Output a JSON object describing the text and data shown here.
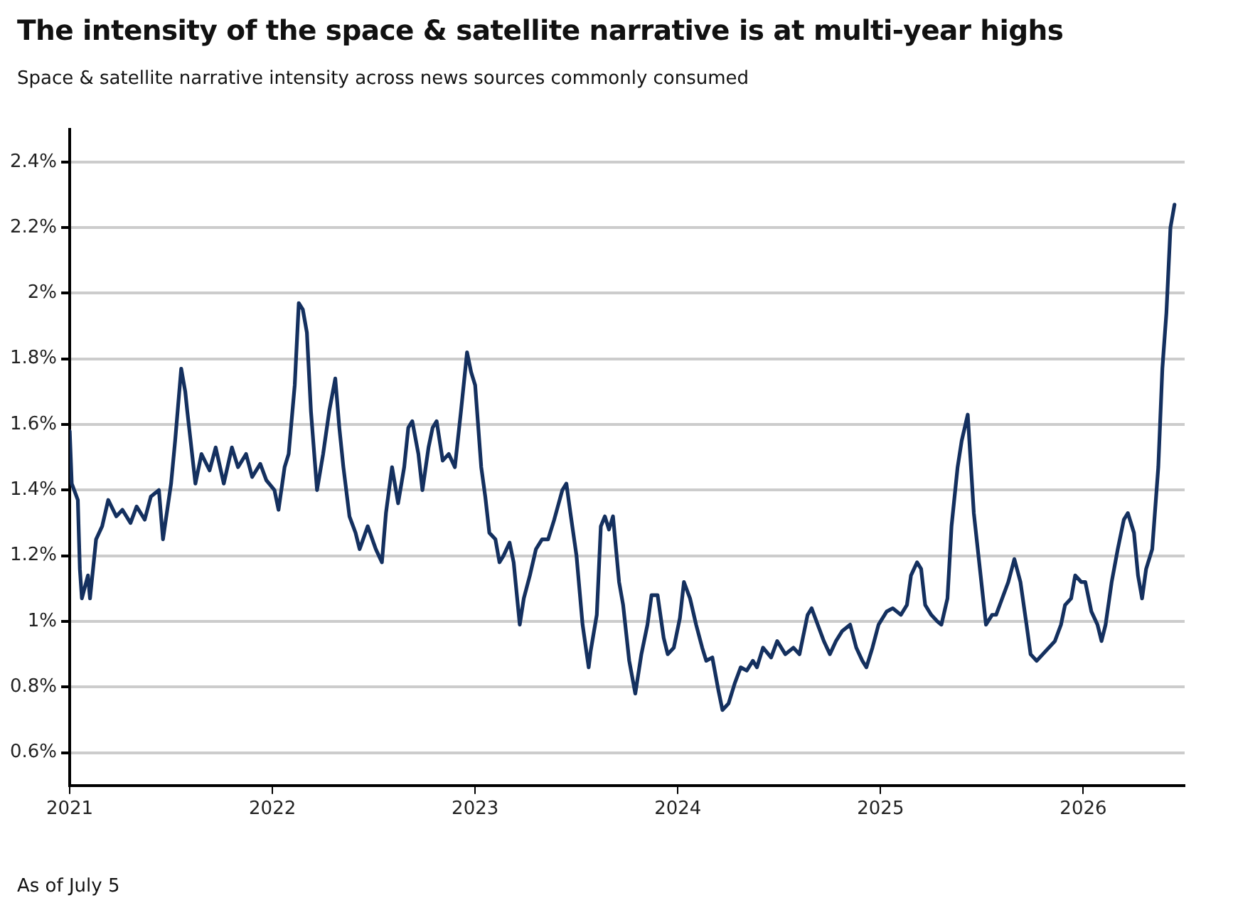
{
  "chart_data": {
    "type": "line",
    "title": "The intensity of the space & satellite narrative is at multi-year highs",
    "subtitle": "Space & satellite narrative intensity across news sources commonly consumed",
    "annotations": [
      "As of July 5"
    ],
    "xlim": [
      2021,
      2026.5
    ],
    "xticks": [
      2021,
      2022,
      2023,
      2024,
      2025,
      2026
    ],
    "ylim": [
      0.5,
      2.5
    ],
    "yticks": [
      {
        "value": 0.6,
        "label": "0.6%"
      },
      {
        "value": 0.8,
        "label": "0.8%"
      },
      {
        "value": 1,
        "label": "1%"
      },
      {
        "value": 1.2,
        "label": "1.2%"
      },
      {
        "value": 1.4,
        "label": "1.4%"
      },
      {
        "value": 1.6,
        "label": "1.6%"
      },
      {
        "value": 1.8,
        "label": "1.8%"
      },
      {
        "value": 2,
        "label": "2%"
      },
      {
        "value": 2.2,
        "label": "2.2%"
      },
      {
        "value": 2.4,
        "label": "2.4%"
      }
    ],
    "grid": "y",
    "marker": "none",
    "line_style": "solid",
    "series": [
      {
        "color": "#14305f",
        "x": [
          2021.0,
          2021.01,
          2021.04,
          2021.05,
          2021.06,
          2021.09,
          2021.1,
          2021.13,
          2021.16,
          2021.19,
          2021.23,
          2021.26,
          2021.3,
          2021.33,
          2021.37,
          2021.4,
          2021.44,
          2021.46,
          2021.5,
          2021.52,
          2021.55,
          2021.57,
          2021.58,
          2021.62,
          2021.65,
          2021.69,
          2021.72,
          2021.76,
          2021.8,
          2021.83,
          2021.87,
          2021.9,
          2021.94,
          2021.97,
          2022.01,
          2022.03,
          2022.06,
          2022.08,
          2022.11,
          2022.13,
          2022.15,
          2022.17,
          2022.19,
          2022.22,
          2022.25,
          2022.28,
          2022.31,
          2022.33,
          2022.35,
          2022.38,
          2022.41,
          2022.43,
          2022.47,
          2022.51,
          2022.54,
          2022.56,
          2022.59,
          2022.62,
          2022.65,
          2022.67,
          2022.69,
          2022.72,
          2022.74,
          2022.77,
          2022.79,
          2022.81,
          2022.84,
          2022.87,
          2022.9,
          2022.93,
          2022.96,
          2022.98,
          2023.0,
          2023.03,
          2023.05,
          2023.07,
          2023.1,
          2023.12,
          2023.14,
          2023.17,
          2023.19,
          2023.22,
          2023.24,
          2023.27,
          2023.3,
          2023.33,
          2023.36,
          2023.39,
          2023.43,
          2023.45,
          2023.47,
          2023.5,
          2023.53,
          2023.56,
          2023.57,
          2023.6,
          2023.62,
          2023.64,
          2023.66,
          2023.68,
          2023.71,
          2023.73,
          2023.76,
          2023.79,
          2023.82,
          2023.85,
          2023.87,
          2023.9,
          2023.93,
          2023.95,
          2023.98,
          2024.01,
          2024.03,
          2024.06,
          2024.09,
          2024.12,
          2024.14,
          2024.17,
          2024.2,
          2024.22,
          2024.25,
          2024.28,
          2024.31,
          2024.34,
          2024.37,
          2024.39,
          2024.42,
          2024.46,
          2024.49,
          2024.53,
          2024.57,
          2024.6,
          2024.64,
          2024.66,
          2024.69,
          2024.72,
          2024.75,
          2024.78,
          2024.81,
          2024.85,
          2024.88,
          2024.91,
          2024.93,
          2024.96,
          2024.99,
          2025.03,
          2025.06,
          2025.1,
          2025.13,
          2025.15,
          2025.18,
          2025.2,
          2025.22,
          2025.25,
          2025.28,
          2025.3,
          2025.33,
          2025.35,
          2025.38,
          2025.4,
          2025.43,
          2025.46,
          2025.49,
          2025.52,
          2025.55,
          2025.57,
          2025.6,
          2025.63,
          2025.66,
          2025.69,
          2025.72,
          2025.74,
          2025.77,
          2025.8,
          2025.83,
          2025.86,
          2025.89,
          2025.91,
          2025.94,
          2025.96,
          2025.99,
          2026.01,
          2026.04,
          2026.07,
          2026.09,
          2026.11,
          2026.14,
          2026.17,
          2026.2,
          2026.22,
          2026.25,
          2026.27,
          2026.29,
          2026.31,
          2026.34,
          2026.37,
          2026.39,
          2026.41,
          2026.43,
          2026.45
        ],
        "values": [
          1.58,
          1.42,
          1.37,
          1.16,
          1.07,
          1.14,
          1.07,
          1.25,
          1.29,
          1.37,
          1.32,
          1.34,
          1.3,
          1.35,
          1.31,
          1.38,
          1.4,
          1.25,
          1.42,
          1.55,
          1.77,
          1.7,
          1.64,
          1.42,
          1.51,
          1.46,
          1.53,
          1.42,
          1.53,
          1.47,
          1.51,
          1.44,
          1.48,
          1.43,
          1.4,
          1.34,
          1.47,
          1.51,
          1.72,
          1.97,
          1.95,
          1.88,
          1.64,
          1.4,
          1.51,
          1.64,
          1.74,
          1.59,
          1.47,
          1.32,
          1.27,
          1.22,
          1.29,
          1.22,
          1.18,
          1.33,
          1.47,
          1.36,
          1.47,
          1.59,
          1.61,
          1.51,
          1.4,
          1.53,
          1.59,
          1.61,
          1.49,
          1.51,
          1.47,
          1.64,
          1.82,
          1.76,
          1.72,
          1.47,
          1.38,
          1.27,
          1.25,
          1.18,
          1.2,
          1.24,
          1.18,
          0.99,
          1.07,
          1.14,
          1.22,
          1.25,
          1.25,
          1.31,
          1.4,
          1.42,
          1.33,
          1.2,
          0.99,
          0.86,
          0.91,
          1.02,
          1.29,
          1.32,
          1.28,
          1.32,
          1.12,
          1.05,
          0.88,
          0.78,
          0.9,
          0.99,
          1.08,
          1.08,
          0.95,
          0.9,
          0.92,
          1.01,
          1.12,
          1.07,
          0.99,
          0.92,
          0.88,
          0.89,
          0.79,
          0.73,
          0.75,
          0.81,
          0.86,
          0.85,
          0.88,
          0.86,
          0.92,
          0.89,
          0.94,
          0.9,
          0.92,
          0.9,
          1.02,
          1.04,
          0.99,
          0.94,
          0.9,
          0.94,
          0.97,
          0.99,
          0.92,
          0.88,
          0.86,
          0.92,
          0.99,
          1.03,
          1.04,
          1.02,
          1.05,
          1.14,
          1.18,
          1.16,
          1.05,
          1.02,
          1.0,
          0.99,
          1.07,
          1.29,
          1.47,
          1.55,
          1.63,
          1.33,
          1.16,
          0.99,
          1.02,
          1.02,
          1.07,
          1.12,
          1.19,
          1.12,
          0.99,
          0.9,
          0.88,
          0.9,
          0.92,
          0.94,
          0.99,
          1.05,
          1.07,
          1.14,
          1.12,
          1.12,
          1.03,
          0.99,
          0.94,
          0.99,
          1.12,
          1.22,
          1.31,
          1.33,
          1.27,
          1.14,
          1.07,
          1.16,
          1.22,
          1.47,
          1.77,
          1.94,
          2.2,
          2.27
        ]
      }
    ]
  }
}
